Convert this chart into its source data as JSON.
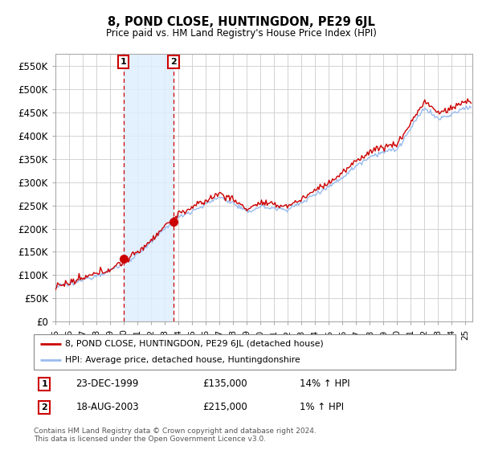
{
  "title": "8, POND CLOSE, HUNTINGDON, PE29 6JL",
  "subtitle": "Price paid vs. HM Land Registry's House Price Index (HPI)",
  "legend_line1": "8, POND CLOSE, HUNTINGDON, PE29 6JL (detached house)",
  "legend_line2": "HPI: Average price, detached house, Huntingdonshire",
  "table_rows": [
    {
      "num": "1",
      "date": "23-DEC-1999",
      "price": "£135,000",
      "hpi": "14% ↑ HPI"
    },
    {
      "num": "2",
      "date": "18-AUG-2003",
      "price": "£215,000",
      "hpi": "1% ↑ HPI"
    }
  ],
  "footnote": "Contains HM Land Registry data © Crown copyright and database right 2024.\nThis data is licensed under the Open Government Licence v3.0.",
  "sale1_year": 1999.97,
  "sale1_price": 135000,
  "sale2_year": 2003.63,
  "sale2_price": 215000,
  "ylim_min": 0,
  "ylim_max": 575000,
  "yticks": [
    0,
    50000,
    100000,
    150000,
    200000,
    250000,
    300000,
    350000,
    400000,
    450000,
    500000,
    550000
  ],
  "bg_color": "#ffffff",
  "plot_bg_color": "#ffffff",
  "grid_color": "#cccccc",
  "red_color": "#cc0000",
  "blue_color": "#99bbee",
  "shade_color": "#ddeeff",
  "vline_color": "#cc0000",
  "box_color": "#cc0000",
  "hpi_base_years": [
    1995,
    1996,
    1997,
    1998,
    1999,
    2000,
    2001,
    2002,
    2003,
    2004,
    2005,
    2006,
    2007,
    2008,
    2009,
    2010,
    2011,
    2012,
    2013,
    2014,
    2015,
    2016,
    2017,
    2018,
    2019,
    2020,
    2021,
    2022,
    2023,
    2024,
    2025
  ],
  "hpi_base_vals": [
    75000,
    80000,
    90000,
    100000,
    110000,
    125000,
    145000,
    170000,
    200000,
    225000,
    238000,
    252000,
    268000,
    255000,
    235000,
    248000,
    243000,
    242000,
    255000,
    275000,
    290000,
    310000,
    335000,
    355000,
    365000,
    370000,
    415000,
    460000,
    435000,
    445000,
    460000
  ]
}
